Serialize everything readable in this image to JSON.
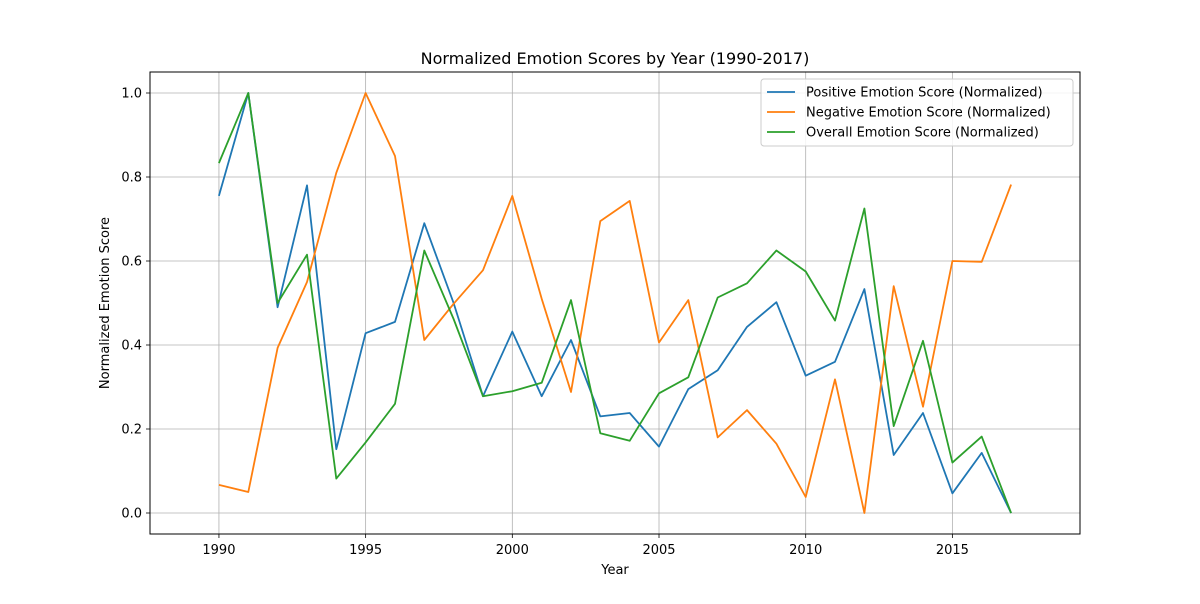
{
  "chart_data": {
    "type": "line",
    "title": "Normalized Emotion Scores by Year (1990-2017)",
    "xlabel": "Year",
    "ylabel": "Normalized Emotion Score",
    "xlim": [
      1987.65,
      2019.35
    ],
    "ylim": [
      -0.05,
      1.05
    ],
    "xticks": [
      1990,
      1995,
      2000,
      2005,
      2010,
      2015
    ],
    "yticks": [
      0.0,
      0.2,
      0.4,
      0.6,
      0.8,
      1.0
    ],
    "xtick_labels": [
      "1990",
      "1995",
      "2000",
      "2005",
      "2010",
      "2015"
    ],
    "ytick_labels": [
      "0.0",
      "0.2",
      "0.4",
      "0.6",
      "0.8",
      "1.0"
    ],
    "grid": true,
    "legend_position": "top-right",
    "x": [
      1990,
      1991,
      1992,
      1993,
      1994,
      1995,
      1996,
      1997,
      1998,
      1999,
      2000,
      2001,
      2002,
      2003,
      2004,
      2005,
      2006,
      2007,
      2008,
      2009,
      2010,
      2011,
      2012,
      2013,
      2014,
      2015,
      2016,
      2017
    ],
    "series": [
      {
        "name": "Positive Emotion Score (Normalized)",
        "color": "#1f77b4",
        "values": [
          0.755,
          1.0,
          0.49,
          0.78,
          0.152,
          0.428,
          0.455,
          0.69,
          0.5,
          0.278,
          0.432,
          0.278,
          0.412,
          0.23,
          0.238,
          0.158,
          0.295,
          0.34,
          0.443,
          0.502,
          0.327,
          0.36,
          0.533,
          0.138,
          0.238,
          0.047,
          0.143,
          0.0
        ]
      },
      {
        "name": "Negative Emotion Score (Normalized)",
        "color": "#ff7f0e",
        "values": [
          0.067,
          0.05,
          0.393,
          0.55,
          0.81,
          1.0,
          0.85,
          0.412,
          0.498,
          0.578,
          0.755,
          0.51,
          0.288,
          0.695,
          0.743,
          0.406,
          0.507,
          0.18,
          0.245,
          0.165,
          0.038,
          0.318,
          0.0,
          0.54,
          0.253,
          0.6,
          0.598,
          0.782
        ]
      },
      {
        "name": "Overall Emotion Score (Normalized)",
        "color": "#2ca02c",
        "values": [
          0.833,
          1.0,
          0.5,
          0.615,
          0.082,
          0.168,
          0.26,
          0.625,
          0.462,
          0.278,
          0.29,
          0.31,
          0.507,
          0.19,
          0.172,
          0.285,
          0.323,
          0.513,
          0.547,
          0.625,
          0.575,
          0.458,
          0.725,
          0.207,
          0.41,
          0.12,
          0.182,
          0.0
        ]
      }
    ]
  }
}
